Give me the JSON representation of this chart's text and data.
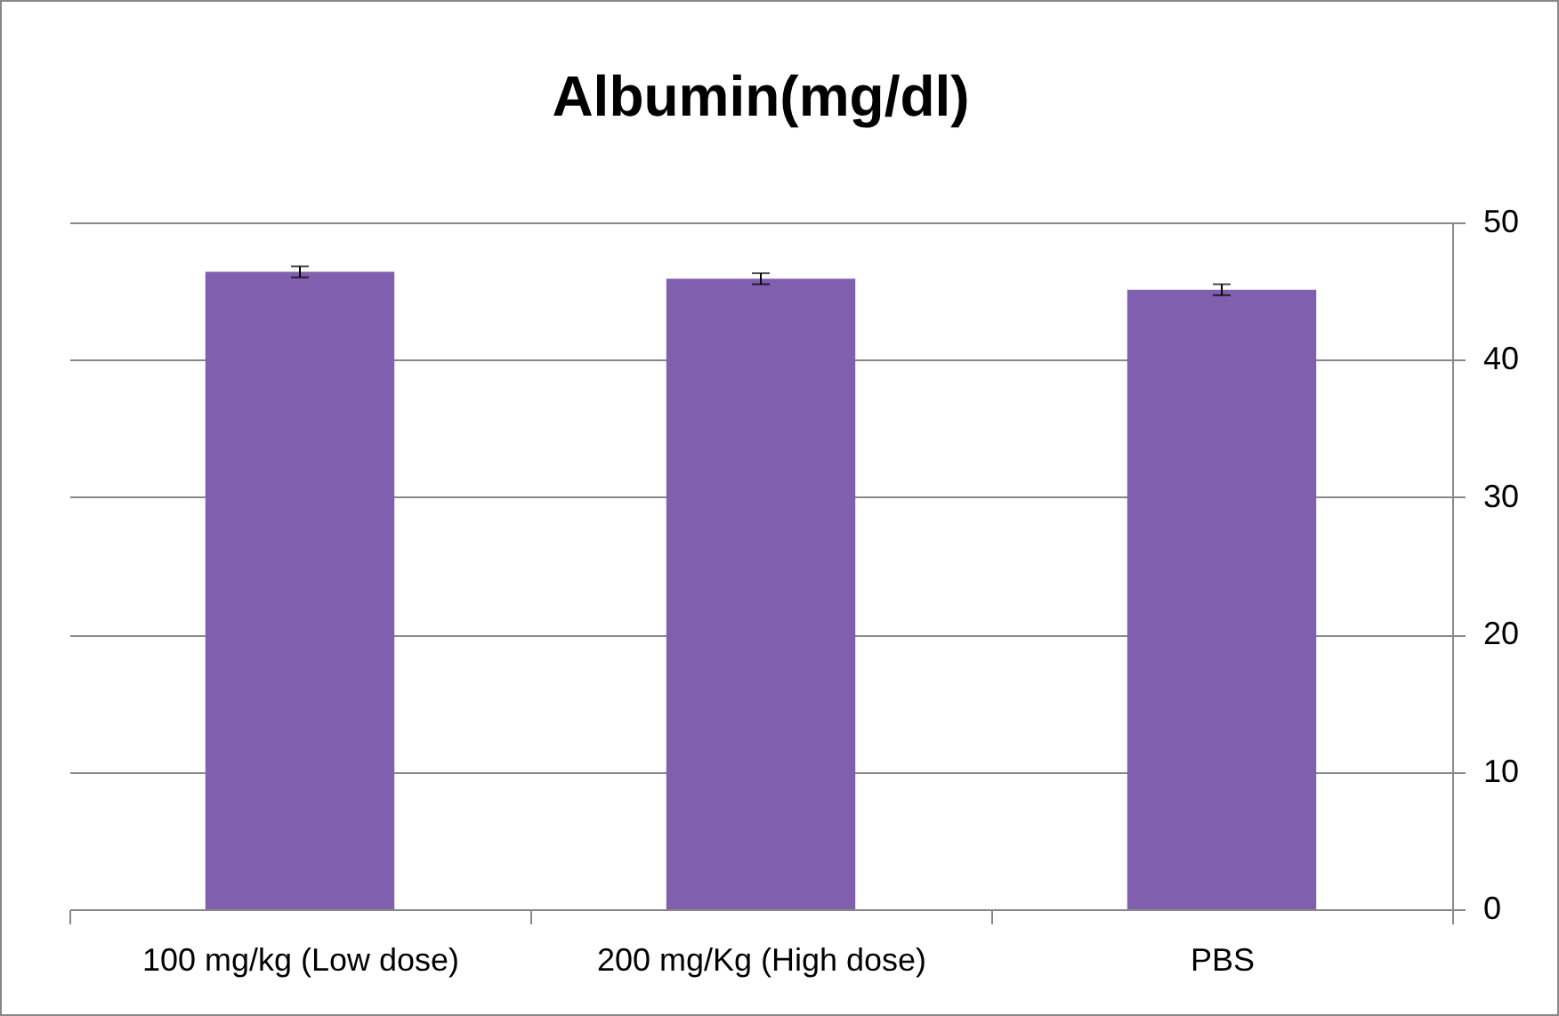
{
  "chart_data": {
    "type": "bar",
    "title": "Albumin(mg/dl)",
    "categories": [
      "100 mg/kg (Low dose)",
      "200 mg/Kg (High dose)",
      "PBS"
    ],
    "values": [
      46.4,
      45.9,
      45.1
    ],
    "errors": [
      0.4,
      0.4,
      0.4
    ],
    "color": "#7f5fae",
    "ylim": [
      0,
      50
    ],
    "yticks": [
      0,
      10,
      20,
      30,
      40,
      50
    ],
    "grid": "y"
  }
}
